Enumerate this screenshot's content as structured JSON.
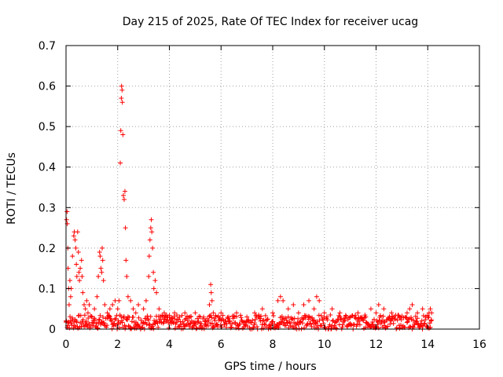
{
  "chart_data": {
    "type": "scatter",
    "title": "Day 215 of 2025, Rate Of TEC Index for receiver ucag",
    "xlabel": "GPS time / hours",
    "ylabel": "ROTI / TECUs",
    "xlim": [
      0,
      16
    ],
    "ylim": [
      0,
      0.7
    ],
    "xticks": [
      0,
      2,
      4,
      6,
      8,
      10,
      12,
      14,
      16
    ],
    "xtick_labels": [
      "0",
      "2",
      "4",
      "6",
      "8",
      "10",
      "12",
      "14",
      "16"
    ],
    "yticks": [
      0,
      0.1,
      0.2,
      0.3,
      0.4,
      0.5,
      0.6,
      0.7
    ],
    "ytick_labels": [
      "0",
      "0.1",
      "0.2",
      "0.3",
      "0.4",
      "0.5",
      "0.6",
      "0.7"
    ],
    "grid": true,
    "marker": "plus",
    "color": "#ff0000",
    "series": [
      {
        "name": "ROTI",
        "x": [
          0.0,
          0.02,
          0.04,
          0.05,
          0.07,
          0.08,
          0.1,
          0.12,
          0.15,
          0.18,
          0.2,
          0.25,
          0.3,
          0.32,
          0.35,
          0.38,
          0.4,
          0.42,
          0.45,
          0.48,
          0.5,
          0.52,
          0.55,
          0.6,
          0.62,
          0.65,
          0.7,
          0.75,
          0.8,
          0.85,
          0.9,
          1.0,
          1.1,
          1.2,
          1.25,
          1.3,
          1.32,
          1.35,
          1.38,
          1.4,
          1.42,
          1.45,
          1.5,
          1.6,
          1.7,
          1.8,
          1.9,
          2.0,
          2.05,
          2.1,
          2.12,
          2.14,
          2.15,
          2.17,
          2.18,
          2.2,
          2.22,
          2.25,
          2.28,
          2.3,
          2.32,
          2.35,
          2.4,
          2.5,
          2.6,
          2.7,
          2.8,
          3.0,
          3.1,
          3.2,
          3.22,
          3.25,
          3.28,
          3.3,
          3.32,
          3.35,
          3.38,
          3.4,
          3.45,
          3.5,
          3.6,
          3.8,
          4.0,
          4.2,
          4.4,
          4.6,
          4.8,
          5.0,
          5.2,
          5.4,
          5.55,
          5.6,
          5.62,
          5.65,
          5.7,
          5.8,
          6.0,
          6.3,
          6.6,
          7.0,
          7.3,
          7.6,
          8.0,
          8.2,
          8.3,
          8.4,
          8.6,
          8.8,
          9.0,
          9.2,
          9.4,
          9.6,
          9.7,
          9.8,
          10.0,
          10.3,
          10.6,
          11.0,
          11.3,
          11.6,
          11.8,
          12.0,
          12.1,
          12.3,
          12.6,
          12.9,
          13.2,
          13.3,
          13.4,
          13.6,
          13.8,
          14.0,
          14.05,
          14.1,
          14.15
        ],
        "y": [
          0.02,
          0.27,
          0.29,
          0.26,
          0.2,
          0.15,
          0.1,
          0.06,
          0.12,
          0.08,
          0.1,
          0.18,
          0.23,
          0.24,
          0.22,
          0.2,
          0.16,
          0.13,
          0.24,
          0.19,
          0.14,
          0.12,
          0.15,
          0.17,
          0.13,
          0.09,
          0.06,
          0.05,
          0.07,
          0.04,
          0.06,
          0.03,
          0.05,
          0.08,
          0.13,
          0.19,
          0.18,
          0.15,
          0.14,
          0.2,
          0.17,
          0.12,
          0.06,
          0.04,
          0.05,
          0.06,
          0.07,
          0.05,
          0.07,
          0.41,
          0.49,
          0.57,
          0.6,
          0.59,
          0.56,
          0.48,
          0.33,
          0.32,
          0.34,
          0.25,
          0.17,
          0.13,
          0.08,
          0.07,
          0.05,
          0.04,
          0.06,
          0.05,
          0.07,
          0.13,
          0.18,
          0.22,
          0.25,
          0.27,
          0.24,
          0.2,
          0.14,
          0.1,
          0.12,
          0.09,
          0.05,
          0.04,
          0.03,
          0.04,
          0.03,
          0.04,
          0.03,
          0.04,
          0.03,
          0.02,
          0.06,
          0.11,
          0.09,
          0.07,
          0.04,
          0.03,
          0.04,
          0.03,
          0.04,
          0.03,
          0.04,
          0.05,
          0.04,
          0.07,
          0.08,
          0.07,
          0.05,
          0.06,
          0.04,
          0.06,
          0.07,
          0.05,
          0.08,
          0.07,
          0.04,
          0.05,
          0.04,
          0.03,
          0.04,
          0.03,
          0.05,
          0.04,
          0.06,
          0.05,
          0.04,
          0.03,
          0.04,
          0.05,
          0.06,
          0.04,
          0.05,
          0.03,
          0.04,
          0.05,
          0.04
        ],
        "floor_band": [
          0.0,
          0.035
        ]
      }
    ]
  }
}
